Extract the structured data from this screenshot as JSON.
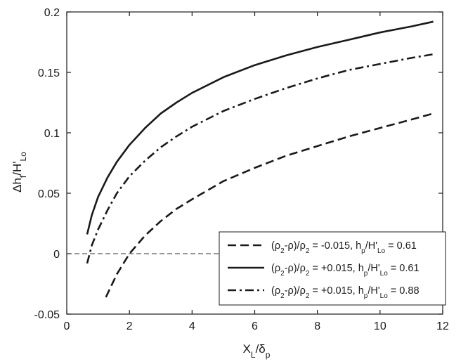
{
  "chart_data": {
    "type": "line",
    "title": "",
    "xlabel": "X_L/δ_p",
    "ylabel": "Δh_f/H'_Lo",
    "xlim": [
      0,
      12
    ],
    "ylim": [
      -0.05,
      0.2
    ],
    "x_ticks": [
      "0",
      "2",
      "4",
      "6",
      "8",
      "10",
      "12"
    ],
    "y_ticks": [
      "-0.05",
      "0",
      "0.05",
      "0.1",
      "0.15",
      "0.2"
    ],
    "grid": false,
    "reference_line": {
      "y": 0,
      "style": "dashed"
    },
    "legend_position": "bottom-right",
    "series": [
      {
        "name": "(ρ2-ρ)/ρ2 = -0.015, hp/H'Lo = 0.61",
        "line_style": "dashed",
        "x": [
          1.25,
          1.6,
          2.0,
          2.5,
          3.0,
          3.5,
          4.0,
          5.0,
          6.0,
          7.0,
          8.0,
          9.0,
          10.0,
          11.0,
          11.7
        ],
        "y": [
          -0.036,
          -0.017,
          0.0,
          0.015,
          0.027,
          0.037,
          0.045,
          0.06,
          0.071,
          0.081,
          0.089,
          0.097,
          0.104,
          0.111,
          0.116
        ]
      },
      {
        "name": "(ρ2-ρ)/ρ2 = +0.015, hp/H'Lo = 0.61",
        "line_style": "solid",
        "x": [
          0.65,
          0.8,
          1.0,
          1.3,
          1.6,
          2.0,
          2.5,
          3.0,
          3.5,
          4.0,
          5.0,
          6.0,
          7.0,
          8.0,
          9.0,
          10.0,
          11.0,
          11.7
        ],
        "y": [
          0.016,
          0.032,
          0.047,
          0.063,
          0.076,
          0.09,
          0.104,
          0.116,
          0.125,
          0.133,
          0.146,
          0.156,
          0.164,
          0.171,
          0.177,
          0.183,
          0.188,
          0.192
        ]
      },
      {
        "name": "(ρ2-ρ)/ρ2 = +0.015, hp/H'Lo = 0.88",
        "line_style": "dashdot",
        "x": [
          0.65,
          0.8,
          1.0,
          1.3,
          1.6,
          2.0,
          2.5,
          3.0,
          3.5,
          4.0,
          5.0,
          6.0,
          7.0,
          8.0,
          9.0,
          10.0,
          11.0,
          11.7
        ],
        "y": [
          -0.008,
          0.007,
          0.02,
          0.036,
          0.05,
          0.064,
          0.077,
          0.088,
          0.097,
          0.105,
          0.118,
          0.128,
          0.137,
          0.145,
          0.152,
          0.157,
          0.162,
          0.165
        ]
      }
    ]
  },
  "legend": {
    "entries": [
      {
        "style": "dashed",
        "r1": "(ρ",
        "s1": "2",
        "r2": "-ρ)/ρ",
        "s2": "2",
        "r3": " = -0.015, h",
        "s3": "p",
        "r4": "/H'",
        "s4": "Lo",
        "r5": " = 0.61"
      },
      {
        "style": "solid",
        "r1": "(ρ",
        "s1": "2",
        "r2": "-ρ)/ρ",
        "s2": "2",
        "r3": " = +0.015, h",
        "s3": "p",
        "r4": "/H'",
        "s4": "Lo",
        "r5": " = 0.61"
      },
      {
        "style": "dashdot",
        "r1": "(ρ",
        "s1": "2",
        "r2": "-ρ)/ρ",
        "s2": "2",
        "r3": " = +0.015, h",
        "s3": "p",
        "r4": "/H'",
        "s4": "Lo",
        "r5": " = 0.88"
      }
    ]
  },
  "axis_text": {
    "x": {
      "main1": "X",
      "sub1": "L",
      "main2": "/δ",
      "sub2": "p"
    },
    "y": {
      "main1": "Δh",
      "sub1": "f",
      "main2": "/H'",
      "sub2": "Lo"
    }
  }
}
